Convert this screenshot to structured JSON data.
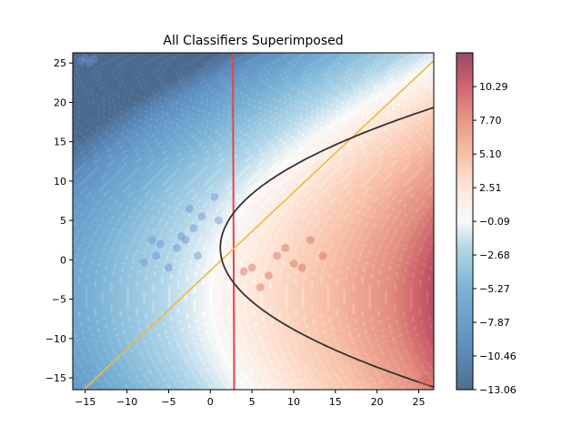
{
  "chart_data": {
    "type": "heatmap",
    "title": "All Classifiers Superimposed",
    "xlabel": "",
    "ylabel": "",
    "xlim": [
      -16.5,
      26.8
    ],
    "ylim": [
      -16.5,
      26.3
    ],
    "xticks": [
      "−15",
      "−10",
      "−5",
      "0",
      "5",
      "10",
      "15",
      "20",
      "25"
    ],
    "xtick_values": [
      -15,
      -10,
      -5,
      0,
      5,
      10,
      15,
      20,
      25
    ],
    "yticks": [
      "−15",
      "−10",
      "−5",
      "0",
      "5",
      "10",
      "15",
      "20",
      "25"
    ],
    "ytick_values": [
      -15,
      -10,
      -5,
      0,
      5,
      10,
      15,
      20,
      25
    ],
    "grid": false,
    "colormap": "RdBu_r",
    "colorbar": {
      "range": [
        -13.06,
        12.9
      ],
      "ticks": [
        "10.29",
        "7.70",
        "5.10",
        "2.51",
        "−0.09",
        "−2.68",
        "−5.27",
        "−7.87",
        "−10.46",
        "−13.06"
      ],
      "tick_values": [
        10.29,
        7.7,
        5.1,
        2.51,
        -0.09,
        -2.68,
        -5.27,
        -7.87,
        -10.46,
        -13.06
      ]
    },
    "decision_boundaries": [
      {
        "kind": "vertical",
        "x": 2.7,
        "color": "#e8434a"
      },
      {
        "kind": "diagonal",
        "points": [
          [
            -15.2,
            -16.5
          ],
          [
            26.8,
            25.3
          ]
        ],
        "color": "#f0b840"
      },
      {
        "kind": "parabola",
        "vertex": [
          1.2,
          1.5
        ],
        "points": [
          [
            1.2,
            1.5
          ],
          [
            2.0,
            5.0
          ],
          [
            4.0,
            8.0
          ],
          [
            8.0,
            11.0
          ],
          [
            15.0,
            14.5
          ],
          [
            20.0,
            17.0
          ],
          [
            26.8,
            20.2
          ],
          [
            2.0,
            -2.0
          ],
          [
            4.0,
            -5.0
          ],
          [
            8.0,
            -9.0
          ],
          [
            12.0,
            -13.0
          ],
          [
            14.5,
            -16.5
          ]
        ],
        "color": "#333333"
      }
    ],
    "points": [
      {
        "x": -15.5,
        "y": 25.3,
        "class": "blue"
      },
      {
        "x": -15.0,
        "y": 25.6,
        "class": "blue"
      },
      {
        "x": -14.5,
        "y": 25.0,
        "class": "blue"
      },
      {
        "x": -14.0,
        "y": 25.5,
        "class": "blue"
      },
      {
        "x": 25.8,
        "y": -15.0,
        "class": "red"
      },
      {
        "x": 26.0,
        "y": -15.6,
        "class": "red"
      },
      {
        "x": 25.4,
        "y": -15.3,
        "class": "red"
      },
      {
        "x": 0.5,
        "y": 8.0,
        "class": "blue"
      },
      {
        "x": -1.0,
        "y": 5.5,
        "class": "blue"
      },
      {
        "x": -2.0,
        "y": 4.0,
        "class": "blue"
      },
      {
        "x": -3.0,
        "y": 2.5,
        "class": "blue"
      },
      {
        "x": -4.0,
        "y": 1.5,
        "class": "blue"
      },
      {
        "x": -6.0,
        "y": 2.0,
        "class": "blue"
      },
      {
        "x": -7.0,
        "y": 2.5,
        "class": "blue"
      },
      {
        "x": -6.5,
        "y": 0.5,
        "class": "blue"
      },
      {
        "x": -8.0,
        "y": -0.3,
        "class": "blue"
      },
      {
        "x": -5.0,
        "y": -1.0,
        "class": "blue"
      },
      {
        "x": -3.5,
        "y": 3.0,
        "class": "blue"
      },
      {
        "x": -1.5,
        "y": 0.5,
        "class": "blue"
      },
      {
        "x": 1.0,
        "y": 5.0,
        "class": "blue"
      },
      {
        "x": -2.5,
        "y": 6.5,
        "class": "blue"
      },
      {
        "x": 5.0,
        "y": -1.0,
        "class": "red"
      },
      {
        "x": 7.0,
        "y": -2.0,
        "class": "red"
      },
      {
        "x": 8.0,
        "y": 0.5,
        "class": "red"
      },
      {
        "x": 10.0,
        "y": -0.5,
        "class": "red"
      },
      {
        "x": 11.0,
        "y": -1.0,
        "class": "red"
      },
      {
        "x": 12.0,
        "y": 2.5,
        "class": "red"
      },
      {
        "x": 9.0,
        "y": 1.5,
        "class": "red"
      },
      {
        "x": 6.0,
        "y": -3.5,
        "class": "red"
      },
      {
        "x": 4.0,
        "y": -1.5,
        "class": "red"
      },
      {
        "x": 13.5,
        "y": 0.5,
        "class": "red"
      }
    ],
    "colors": {
      "red_max": "#67001f",
      "blue_max": "#053061",
      "vertical_boundary": "#e8434a",
      "diagonal_boundary": "#f0b840",
      "parabola_boundary": "#333333"
    }
  }
}
